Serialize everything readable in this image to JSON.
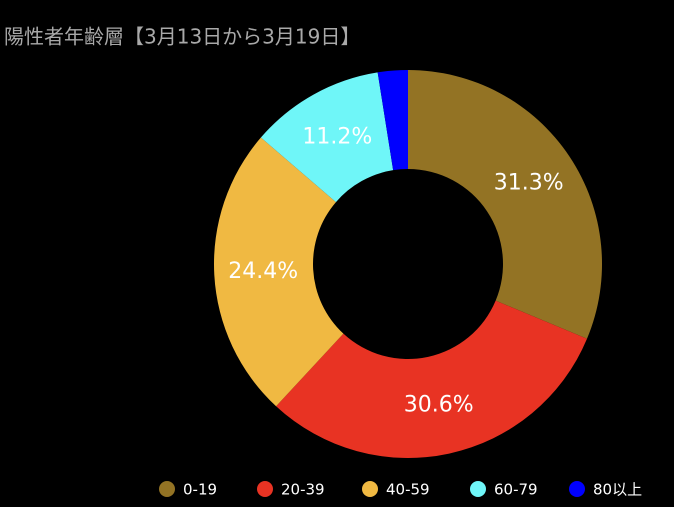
{
  "chart_data": {
    "type": "donut",
    "title": "陽性者年齢層【3月13日から3月19日】",
    "categories": [
      "0-19",
      "20-39",
      "40-59",
      "60-79",
      "80以上"
    ],
    "values": [
      31.3,
      30.6,
      24.4,
      11.2,
      2.5
    ],
    "value_labels": [
      "31.3%",
      "30.6%",
      "24.4%",
      "11.2%",
      null
    ],
    "colors": [
      "#937324",
      "#e83323",
      "#f0b942",
      "#6ff6f8",
      "#0000ff"
    ],
    "legend": "bottom"
  }
}
